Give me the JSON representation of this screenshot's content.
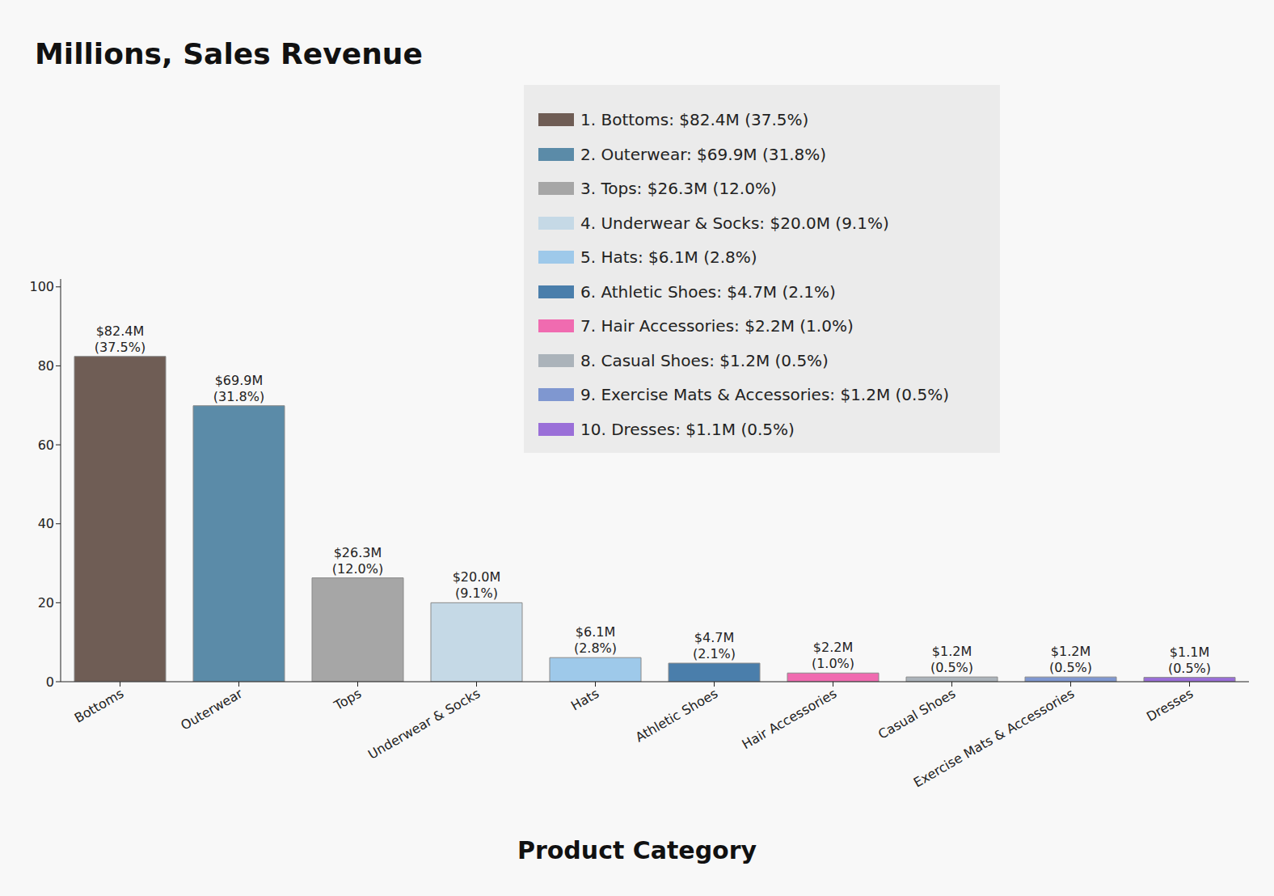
{
  "chart_data": {
    "type": "bar",
    "title": "Millions, Sales Revenue",
    "x_label": "Product Category",
    "categories": [
      "Bottoms",
      "Outerwear",
      "Tops",
      "Underwear & Socks",
      "Hats",
      "Athletic Shoes",
      "Hair Accessories",
      "Casual Shoes",
      "Exercise Mats & Accessories",
      "Dresses"
    ],
    "values": [
      82.4,
      69.9,
      26.3,
      20.0,
      6.1,
      4.7,
      2.2,
      1.2,
      1.2,
      1.1
    ],
    "value_labels": [
      "$82.4M\n(37.5%)",
      "$69.9M\n(31.8%)",
      "$26.3M\n(12.0%)",
      "$20.0M\n(9.1%)",
      "$6.1M\n(2.8%)",
      "$4.7M\n(2.1%)",
      "$2.2M\n(1.0%)",
      "$1.2M\n(0.5%)",
      "$1.2M\n(0.5%)",
      "$1.1M\n(0.5%)"
    ],
    "colors": [
      "#6f5d55",
      "#5b8ba8",
      "#a6a6a6",
      "#c5d9e6",
      "#9ec9ea",
      "#4a7eab",
      "#f06bb0",
      "#abb3ba",
      "#7f97d0",
      "#9a6fd8"
    ],
    "legend_entries": [
      "1. Bottoms: $82.4M (37.5%)",
      "2. Outerwear: $69.9M (31.8%)",
      "3. Tops: $26.3M (12.0%)",
      "4. Underwear & Socks: $20.0M (9.1%)",
      "5. Hats: $6.1M (2.8%)",
      "6. Athletic Shoes: $4.7M (2.1%)",
      "7. Hair Accessories: $2.2M (1.0%)",
      "8. Casual Shoes: $1.2M (0.5%)",
      "9. Exercise Mats & Accessories: $1.2M (0.5%)",
      "10. Dresses: $1.1M (0.5%)"
    ],
    "ylim": [
      0,
      102
    ],
    "yticks": [
      0,
      20,
      40,
      60,
      80,
      100
    ],
    "grid": false,
    "legend": "upper right",
    "data_labels": true
  }
}
